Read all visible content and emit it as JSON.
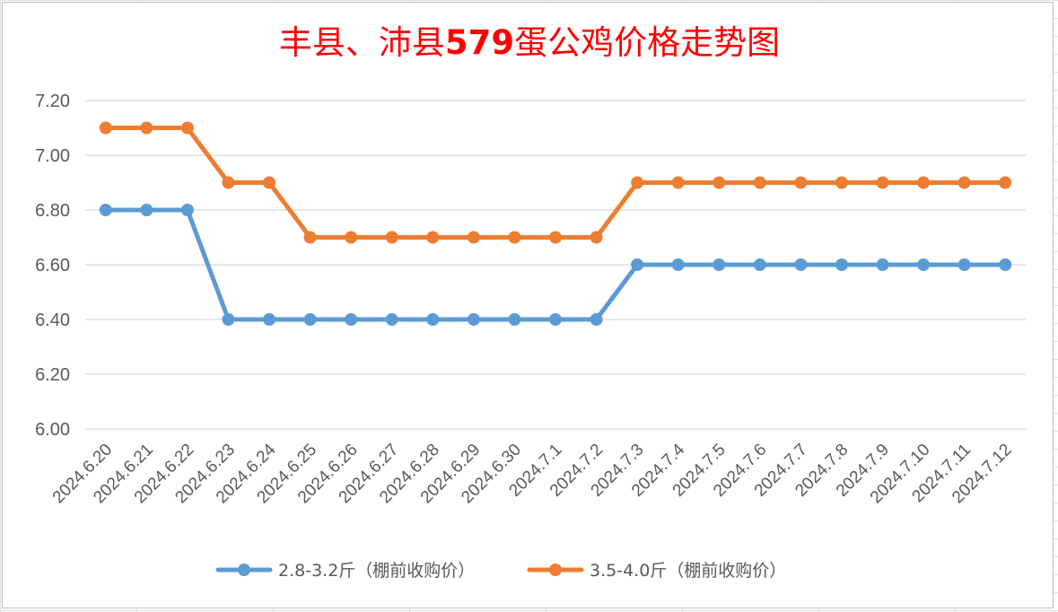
{
  "chart_data": {
    "type": "line",
    "title_part1": "丰县、沛县",
    "title_part2": "579",
    "title_part3": "蛋公鸡价格走势图",
    "x": [
      "2024.6.20",
      "2024.6.21",
      "2024.6.22",
      "2024.6.23",
      "2024.6.24",
      "2024.6.25",
      "2024.6.26",
      "2024.6.27",
      "2024.6.28",
      "2024.6.29",
      "2024.6.30",
      "2024.7.1",
      "2024.7.2",
      "2024.7.3",
      "2024.7.4",
      "2024.7.5",
      "2024.7.6",
      "2024.7.7",
      "2024.7.8",
      "2024.7.9",
      "2024.7.10",
      "2024.7.11",
      "2024.7.12"
    ],
    "ylim": [
      6.0,
      7.2
    ],
    "yticks": [
      "6.00",
      "6.20",
      "6.40",
      "6.60",
      "6.80",
      "7.00",
      "7.20"
    ],
    "grid": true,
    "legend_position": "bottom",
    "series": [
      {
        "name": "2.8-3.2斤（棚前收购价）",
        "color": "#5b9bd5",
        "values": [
          6.8,
          6.8,
          6.8,
          6.4,
          6.4,
          6.4,
          6.4,
          6.4,
          6.4,
          6.4,
          6.4,
          6.4,
          6.4,
          6.6,
          6.6,
          6.6,
          6.6,
          6.6,
          6.6,
          6.6,
          6.6,
          6.6,
          6.6
        ]
      },
      {
        "name": "3.5-4.0斤（棚前收购价）",
        "color": "#ed7d31",
        "values": [
          7.1,
          7.1,
          7.1,
          6.9,
          6.9,
          6.7,
          6.7,
          6.7,
          6.7,
          6.7,
          6.7,
          6.7,
          6.7,
          6.9,
          6.9,
          6.9,
          6.9,
          6.9,
          6.9,
          6.9,
          6.9,
          6.9,
          6.9
        ]
      }
    ]
  }
}
